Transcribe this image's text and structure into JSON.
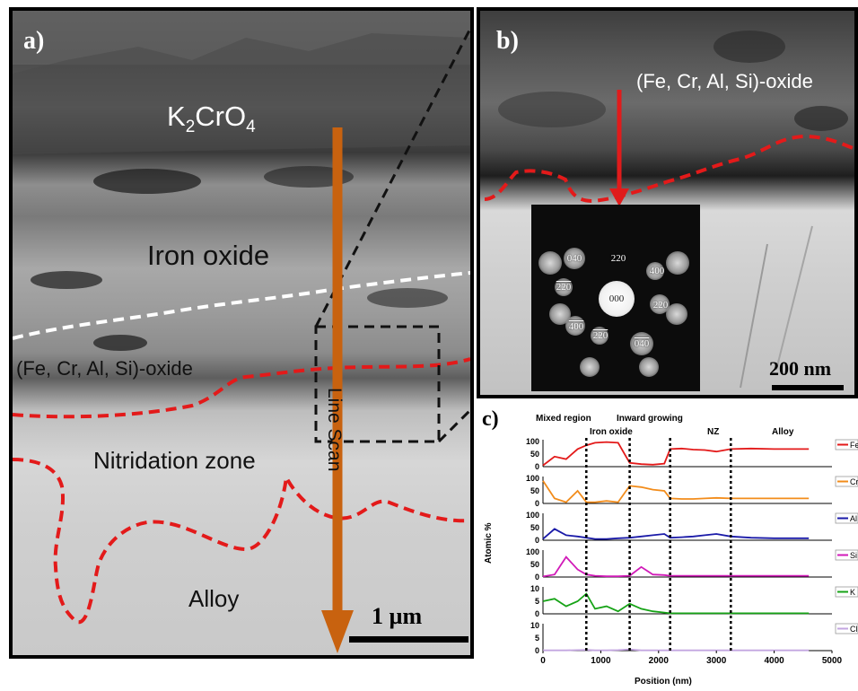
{
  "panel_a": {
    "letter": "a)",
    "labels": {
      "k2cro4_main": "K",
      "k2cro4_sub1": "2",
      "k2cro4_mid": "CrO",
      "k2cro4_sub2": "4",
      "iron_oxide": "Iron oxide",
      "mixed_oxide": "(Fe, Cr, Al, Si)-oxide",
      "nitridation_zone": "Nitridation zone",
      "alloy": "Alloy",
      "line_scan": "Line Scan"
    },
    "scale_bar": "1 µm",
    "colors": {
      "arrow": "#c8620f",
      "boundary_red": "#e31a1a",
      "boundary_white": "#ffffff"
    }
  },
  "panel_b": {
    "letter": "b)",
    "label": "(Fe, Cr, Al, Si)-oxide",
    "scale_bar": "200 nm",
    "saed_spots": [
      "040",
      "220",
      "400",
      "220",
      "000",
      "220",
      "400",
      "220",
      "040"
    ],
    "colors": {
      "arrow": "#e01b1b"
    }
  },
  "panel_c": {
    "letter": "c)",
    "regions": [
      "Mixed region",
      "Iron oxide",
      "Inward growing",
      "NZ",
      "Alloy"
    ],
    "ylabel": "Atomic %",
    "xlabel": "Position (nm)",
    "x_ticks": [
      "0",
      "1000",
      "2000",
      "3000",
      "4000",
      "5000"
    ],
    "region_boundaries_nm": [
      750,
      1500,
      2200,
      3250
    ],
    "series": [
      {
        "name": "Fe",
        "color": "#e31a1a",
        "yticks": [
          "0",
          "50",
          "100"
        ]
      },
      {
        "name": "Cr",
        "color": "#f28c1b",
        "yticks": [
          "0",
          "50",
          "100"
        ]
      },
      {
        "name": "Al",
        "color": "#1a1aa8",
        "yticks": [
          "0",
          "50",
          "100"
        ]
      },
      {
        "name": "Si",
        "color": "#d11ab8",
        "yticks": [
          "0",
          "50",
          "100"
        ]
      },
      {
        "name": "K",
        "color": "#16a316",
        "yticks": [
          "0",
          "5",
          "10"
        ]
      },
      {
        "name": "Cl",
        "color": "#c3a6e0",
        "yticks": [
          "0",
          "5",
          "10"
        ]
      }
    ]
  },
  "chart_data": {
    "type": "line",
    "title": "",
    "xlabel": "Position (nm)",
    "ylabel": "Atomic %",
    "xlim": [
      0,
      5000
    ],
    "x": [
      0,
      200,
      400,
      600,
      750,
      900,
      1100,
      1300,
      1500,
      1700,
      1900,
      2100,
      2200,
      2400,
      2600,
      2800,
      3000,
      3250,
      3600,
      4000,
      4600
    ],
    "series": [
      {
        "name": "Fe",
        "ylim": [
          0,
          100
        ],
        "values": [
          5,
          40,
          30,
          70,
          85,
          95,
          98,
          95,
          15,
          10,
          8,
          12,
          70,
          72,
          68,
          66,
          60,
          70,
          72,
          70,
          70
        ]
      },
      {
        "name": "Cr",
        "ylim": [
          0,
          100
        ],
        "values": [
          90,
          20,
          5,
          50,
          5,
          5,
          10,
          5,
          70,
          65,
          55,
          50,
          20,
          18,
          18,
          20,
          22,
          20,
          20,
          20,
          20
        ]
      },
      {
        "name": "Al",
        "ylim": [
          0,
          100
        ],
        "values": [
          5,
          45,
          20,
          15,
          10,
          5,
          5,
          8,
          10,
          15,
          20,
          25,
          10,
          12,
          15,
          20,
          25,
          15,
          10,
          8,
          8
        ]
      },
      {
        "name": "Si",
        "ylim": [
          0,
          100
        ],
        "values": [
          2,
          10,
          80,
          30,
          10,
          5,
          3,
          3,
          5,
          40,
          10,
          8,
          5,
          5,
          5,
          5,
          5,
          5,
          5,
          5,
          5
        ]
      },
      {
        "name": "K",
        "ylim": [
          0,
          10
        ],
        "values": [
          5,
          6,
          3,
          5,
          8,
          2,
          3,
          1,
          4,
          2,
          1,
          0.5,
          0.2,
          0.2,
          0.2,
          0.2,
          0.2,
          0.2,
          0.2,
          0.2,
          0.2
        ]
      },
      {
        "name": "Cl",
        "ylim": [
          0,
          10
        ],
        "values": [
          0.1,
          0.1,
          0.1,
          0.2,
          0.3,
          0.1,
          0.1,
          0.2,
          0.5,
          0.1,
          0.1,
          0.1,
          0.1,
          0.1,
          0.1,
          0.1,
          0.1,
          0.1,
          0.1,
          0.1,
          0.1
        ]
      }
    ]
  }
}
